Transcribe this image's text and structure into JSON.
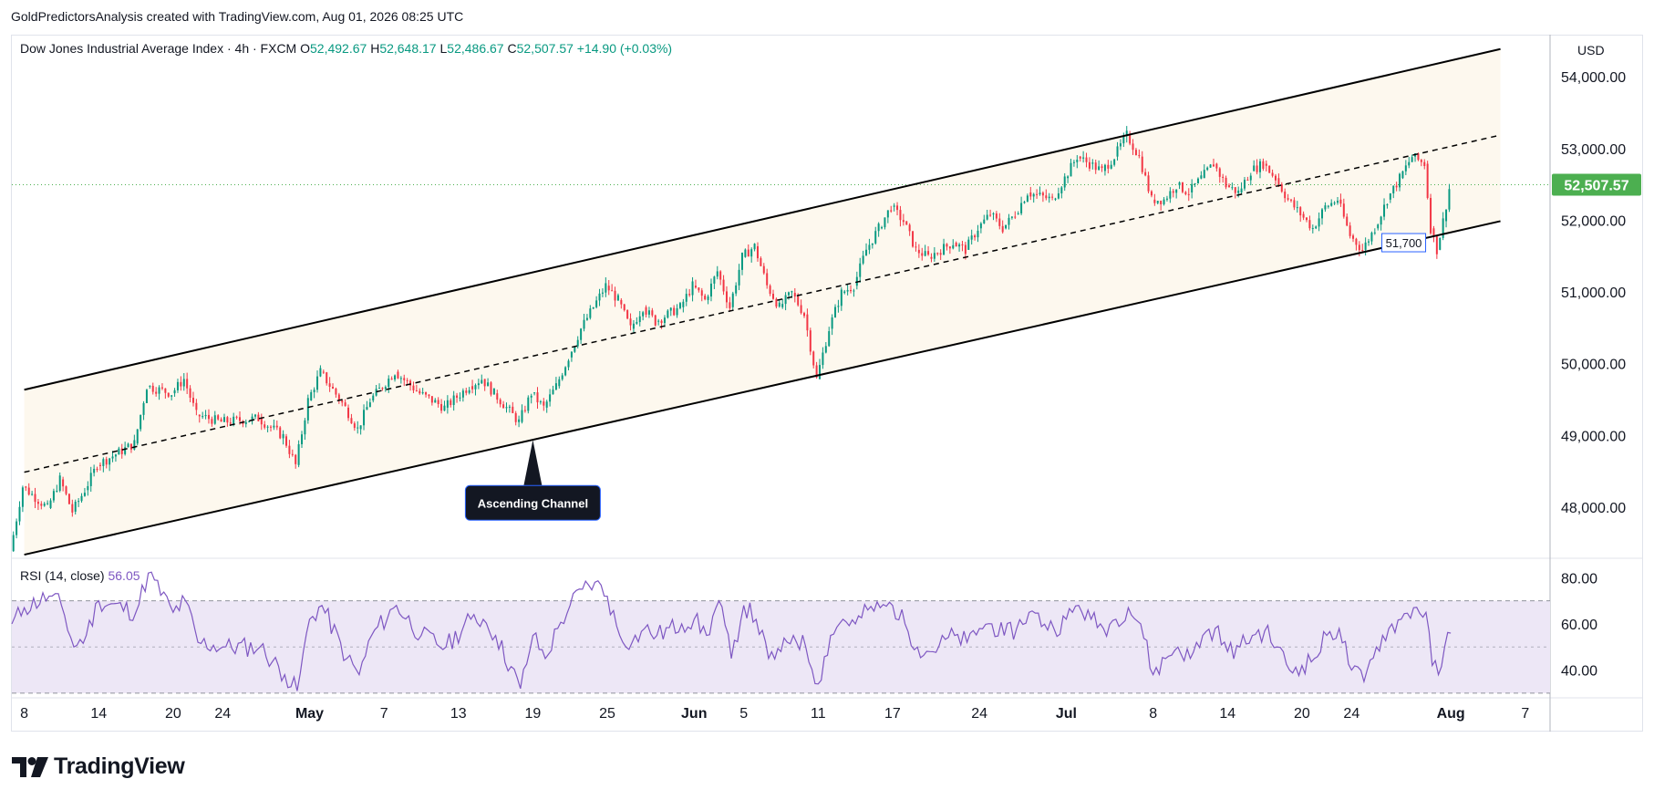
{
  "header": {
    "published_by": "GoldPredictorsAnalysis created with TradingView.com, Aug 01, 2026 08:25 UTC"
  },
  "legend": {
    "symbol": "Dow Jones Industrial Average Index · 4h · FXCM",
    "open_label": "O",
    "open": "52,492.67",
    "high_label": "H",
    "high": "52,648.17",
    "low_label": "L",
    "low": "52,486.67",
    "close_label": "C",
    "close": "52,507.57",
    "change": "+14.90 (+0.03%)"
  },
  "rsi_legend": {
    "label": "RSI (14, close)",
    "value": "56.05"
  },
  "currency": "USD",
  "logo_text": "TradingView",
  "colors": {
    "up": "#089981",
    "down": "#f23645",
    "rsi": "#7e57c2",
    "rsi_band": "#ede7f6",
    "channel_fill": "#fdf8ee",
    "price_badge": "#4caf50",
    "grid_axis": "#e0e3eb"
  },
  "chart_data": {
    "type": "candlestick",
    "price_axis": {
      "min": 47300,
      "max": 54600,
      "ticks": [
        48000,
        49000,
        50000,
        51000,
        52000,
        53000,
        54000
      ],
      "tick_labels": [
        "48,000.00",
        "49,000.00",
        "50,000.00",
        "51,000.00",
        "52,000.00",
        "53,000.00",
        "54,000.00"
      ]
    },
    "time_axis": {
      "start_date": "2026-04-07",
      "end_date": "2026-08-09",
      "ticks": [
        {
          "date": "2026-04-08",
          "label": "8",
          "bold": false
        },
        {
          "date": "2026-04-14",
          "label": "14",
          "bold": false
        },
        {
          "date": "2026-04-20",
          "label": "20",
          "bold": false
        },
        {
          "date": "2026-04-24",
          "label": "24",
          "bold": false
        },
        {
          "date": "2026-05-01",
          "label": "May",
          "bold": true
        },
        {
          "date": "2026-05-07",
          "label": "7",
          "bold": false
        },
        {
          "date": "2026-05-13",
          "label": "13",
          "bold": false
        },
        {
          "date": "2026-05-19",
          "label": "19",
          "bold": false
        },
        {
          "date": "2026-05-25",
          "label": "25",
          "bold": false
        },
        {
          "date": "2026-06-01",
          "label": "Jun",
          "bold": true
        },
        {
          "date": "2026-06-05",
          "label": "5",
          "bold": false
        },
        {
          "date": "2026-06-11",
          "label": "11",
          "bold": false
        },
        {
          "date": "2026-06-17",
          "label": "17",
          "bold": false
        },
        {
          "date": "2026-06-24",
          "label": "24",
          "bold": false
        },
        {
          "date": "2026-07-01",
          "label": "Jul",
          "bold": true
        },
        {
          "date": "2026-07-08",
          "label": "8",
          "bold": false
        },
        {
          "date": "2026-07-14",
          "label": "14",
          "bold": false
        },
        {
          "date": "2026-07-20",
          "label": "20",
          "bold": false
        },
        {
          "date": "2026-07-24",
          "label": "24",
          "bold": false
        },
        {
          "date": "2026-08-01",
          "label": "Aug",
          "bold": true
        },
        {
          "date": "2026-08-07",
          "label": "7",
          "bold": false
        }
      ]
    },
    "price_path": [
      [
        "2026-04-07",
        47400
      ],
      [
        "2026-04-08",
        48300
      ],
      [
        "2026-04-10",
        48000
      ],
      [
        "2026-04-11",
        48400
      ],
      [
        "2026-04-12",
        47950
      ],
      [
        "2026-04-13",
        48250
      ],
      [
        "2026-04-14",
        48600
      ],
      [
        "2026-04-17",
        48900
      ],
      [
        "2026-04-18",
        49700
      ],
      [
        "2026-04-20",
        49600
      ],
      [
        "2026-04-21",
        49800
      ],
      [
        "2026-04-22",
        49300
      ],
      [
        "2026-04-24",
        49200
      ],
      [
        "2026-04-27",
        49250
      ],
      [
        "2026-04-29",
        49000
      ],
      [
        "2026-04-30",
        48600
      ],
      [
        "2026-05-01",
        49500
      ],
      [
        "2026-05-02",
        49900
      ],
      [
        "2026-05-04",
        49400
      ],
      [
        "2026-05-05",
        49100
      ],
      [
        "2026-05-06",
        49500
      ],
      [
        "2026-05-08",
        49900
      ],
      [
        "2026-05-10",
        49600
      ],
      [
        "2026-05-12",
        49400
      ],
      [
        "2026-05-14",
        49700
      ],
      [
        "2026-05-15",
        49800
      ],
      [
        "2026-05-16",
        49600
      ],
      [
        "2026-05-18",
        49200
      ],
      [
        "2026-05-19",
        49600
      ],
      [
        "2026-05-20",
        49400
      ],
      [
        "2026-05-21",
        49700
      ],
      [
        "2026-05-22",
        50100
      ],
      [
        "2026-05-23",
        50500
      ],
      [
        "2026-05-24",
        50800
      ],
      [
        "2026-05-25",
        51100
      ],
      [
        "2026-05-26",
        50900
      ],
      [
        "2026-05-27",
        50500
      ],
      [
        "2026-05-28",
        50800
      ],
      [
        "2026-05-29",
        50600
      ],
      [
        "2026-05-31",
        50800
      ],
      [
        "2026-06-01",
        51100
      ],
      [
        "2026-06-02",
        50900
      ],
      [
        "2026-06-03",
        51300
      ],
      [
        "2026-06-04",
        50800
      ],
      [
        "2026-06-05",
        51500
      ],
      [
        "2026-06-06",
        51650
      ],
      [
        "2026-06-07",
        51100
      ],
      [
        "2026-06-08",
        50800
      ],
      [
        "2026-06-09",
        51000
      ],
      [
        "2026-06-10",
        50700
      ],
      [
        "2026-06-11",
        49800
      ],
      [
        "2026-06-12",
        50500
      ],
      [
        "2026-06-13",
        51000
      ],
      [
        "2026-06-14",
        51100
      ],
      [
        "2026-06-15",
        51600
      ],
      [
        "2026-06-16",
        51900
      ],
      [
        "2026-06-17",
        52200
      ],
      [
        "2026-06-18",
        52000
      ],
      [
        "2026-06-19",
        51600
      ],
      [
        "2026-06-20",
        51500
      ],
      [
        "2026-06-22",
        51700
      ],
      [
        "2026-06-23",
        51600
      ],
      [
        "2026-06-24",
        51900
      ],
      [
        "2026-06-25",
        52100
      ],
      [
        "2026-06-26",
        51900
      ],
      [
        "2026-06-27",
        52100
      ],
      [
        "2026-06-28",
        52400
      ],
      [
        "2026-06-30",
        52300
      ],
      [
        "2026-07-01",
        52600
      ],
      [
        "2026-07-02",
        52900
      ],
      [
        "2026-07-03",
        52800
      ],
      [
        "2026-07-04",
        52700
      ],
      [
        "2026-07-05",
        52900
      ],
      [
        "2026-07-06",
        53200
      ],
      [
        "2026-07-07",
        52900
      ],
      [
        "2026-07-08",
        52300
      ],
      [
        "2026-07-09",
        52300
      ],
      [
        "2026-07-10",
        52500
      ],
      [
        "2026-07-11",
        52400
      ],
      [
        "2026-07-12",
        52600
      ],
      [
        "2026-07-13",
        52800
      ],
      [
        "2026-07-14",
        52500
      ],
      [
        "2026-07-15",
        52400
      ],
      [
        "2026-07-16",
        52700
      ],
      [
        "2026-07-17",
        52800
      ],
      [
        "2026-07-18",
        52600
      ],
      [
        "2026-07-19",
        52300
      ],
      [
        "2026-07-20",
        52100
      ],
      [
        "2026-07-21",
        51900
      ],
      [
        "2026-07-22",
        52200
      ],
      [
        "2026-07-23",
        52300
      ],
      [
        "2026-07-24",
        51800
      ],
      [
        "2026-07-25",
        51600
      ],
      [
        "2026-07-26",
        51900
      ],
      [
        "2026-07-27",
        52300
      ],
      [
        "2026-07-28",
        52600
      ],
      [
        "2026-07-29",
        52900
      ],
      [
        "2026-07-30",
        52800
      ],
      [
        "2026-07-30T12:00",
        51900
      ],
      [
        "2026-07-31",
        51600
      ],
      [
        "2026-07-31T12:00",
        52000
      ],
      [
        "2026-08-01",
        52450
      ]
    ],
    "candles_per_day": 4,
    "channel": {
      "upper": [
        [
          "2026-04-08",
          49650
        ],
        [
          "2026-08-05",
          54400
        ]
      ],
      "lower": [
        [
          "2026-04-08",
          47350
        ],
        [
          "2026-08-05",
          52000
        ]
      ],
      "middle": [
        [
          "2026-04-08",
          48500
        ],
        [
          "2026-08-05",
          53200
        ]
      ]
    },
    "last_price": {
      "value": 52507.57,
      "label": "52,507.57"
    },
    "annotations": [
      {
        "text": "Ascending Channel",
        "date": "2026-05-19",
        "price": 48950
      },
      {
        "text": "51,700",
        "date": "2026-07-26",
        "price": 51700
      }
    ],
    "rsi": {
      "axis": {
        "min": 28,
        "max": 88,
        "ticks": [
          40,
          60,
          80
        ],
        "tick_labels": [
          "40.00",
          "60.00",
          "80.00"
        ]
      },
      "upper_band": 70,
      "middle": 50,
      "lower_band": 30,
      "path": [
        [
          "2026-04-07",
          60
        ],
        [
          "2026-04-08",
          67
        ],
        [
          "2026-04-10",
          72
        ],
        [
          "2026-04-11",
          68
        ],
        [
          "2026-04-12",
          50
        ],
        [
          "2026-04-13",
          55
        ],
        [
          "2026-04-14",
          70
        ],
        [
          "2026-04-17",
          65
        ],
        [
          "2026-04-18",
          82
        ],
        [
          "2026-04-20",
          65
        ],
        [
          "2026-04-21",
          70
        ],
        [
          "2026-04-22",
          52
        ],
        [
          "2026-04-24",
          50
        ],
        [
          "2026-04-27",
          50
        ],
        [
          "2026-04-29",
          38
        ],
        [
          "2026-04-30",
          31
        ],
        [
          "2026-05-01",
          62
        ],
        [
          "2026-05-02",
          68
        ],
        [
          "2026-05-04",
          45
        ],
        [
          "2026-05-05",
          38
        ],
        [
          "2026-05-06",
          55
        ],
        [
          "2026-05-08",
          68
        ],
        [
          "2026-05-10",
          55
        ],
        [
          "2026-05-12",
          50
        ],
        [
          "2026-05-14",
          62
        ],
        [
          "2026-05-15",
          62
        ],
        [
          "2026-05-16",
          55
        ],
        [
          "2026-05-18",
          32
        ],
        [
          "2026-05-19",
          55
        ],
        [
          "2026-05-20",
          45
        ],
        [
          "2026-05-21",
          58
        ],
        [
          "2026-05-22",
          68
        ],
        [
          "2026-05-23",
          75
        ],
        [
          "2026-05-24",
          78
        ],
        [
          "2026-05-25",
          72
        ],
        [
          "2026-05-26",
          55
        ],
        [
          "2026-05-27",
          52
        ],
        [
          "2026-05-28",
          58
        ],
        [
          "2026-05-29",
          55
        ],
        [
          "2026-05-31",
          60
        ],
        [
          "2026-06-01",
          62
        ],
        [
          "2026-06-02",
          55
        ],
        [
          "2026-06-03",
          70
        ],
        [
          "2026-06-04",
          45
        ],
        [
          "2026-06-05",
          68
        ],
        [
          "2026-06-06",
          62
        ],
        [
          "2026-06-07",
          45
        ],
        [
          "2026-06-08",
          48
        ],
        [
          "2026-06-09",
          55
        ],
        [
          "2026-06-10",
          50
        ],
        [
          "2026-06-11",
          34
        ],
        [
          "2026-06-12",
          55
        ],
        [
          "2026-06-13",
          62
        ],
        [
          "2026-06-14",
          60
        ],
        [
          "2026-06-15",
          66
        ],
        [
          "2026-06-16",
          67
        ],
        [
          "2026-06-17",
          68
        ],
        [
          "2026-06-18",
          60
        ],
        [
          "2026-06-19",
          50
        ],
        [
          "2026-06-20",
          48
        ],
        [
          "2026-06-22",
          55
        ],
        [
          "2026-06-23",
          52
        ],
        [
          "2026-06-24",
          58
        ],
        [
          "2026-06-25",
          60
        ],
        [
          "2026-06-26",
          55
        ],
        [
          "2026-06-27",
          58
        ],
        [
          "2026-06-28",
          65
        ],
        [
          "2026-06-30",
          58
        ],
        [
          "2026-07-01",
          62
        ],
        [
          "2026-07-02",
          68
        ],
        [
          "2026-07-03",
          62
        ],
        [
          "2026-07-04",
          58
        ],
        [
          "2026-07-05",
          62
        ],
        [
          "2026-07-06",
          67
        ],
        [
          "2026-07-07",
          60
        ],
        [
          "2026-07-08",
          38
        ],
        [
          "2026-07-09",
          45
        ],
        [
          "2026-07-10",
          50
        ],
        [
          "2026-07-11",
          45
        ],
        [
          "2026-07-12",
          55
        ],
        [
          "2026-07-13",
          58
        ],
        [
          "2026-07-14",
          48
        ],
        [
          "2026-07-15",
          50
        ],
        [
          "2026-07-16",
          55
        ],
        [
          "2026-07-17",
          57
        ],
        [
          "2026-07-18",
          50
        ],
        [
          "2026-07-19",
          40
        ],
        [
          "2026-07-20",
          42
        ],
        [
          "2026-07-21",
          45
        ],
        [
          "2026-07-22",
          55
        ],
        [
          "2026-07-23",
          58
        ],
        [
          "2026-07-24",
          40
        ],
        [
          "2026-07-25",
          35
        ],
        [
          "2026-07-26",
          50
        ],
        [
          "2026-07-27",
          58
        ],
        [
          "2026-07-28",
          62
        ],
        [
          "2026-07-29",
          67
        ],
        [
          "2026-07-30",
          65
        ],
        [
          "2026-07-30T12:00",
          42
        ],
        [
          "2026-07-31",
          38
        ],
        [
          "2026-07-31T12:00",
          50
        ],
        [
          "2026-08-01",
          56
        ]
      ]
    }
  }
}
